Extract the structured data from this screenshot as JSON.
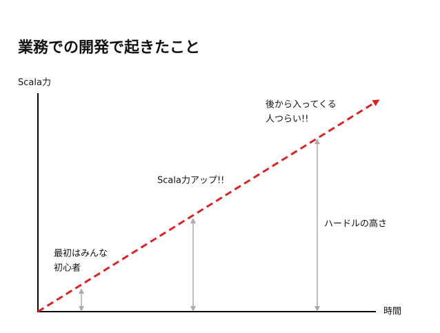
{
  "title": "業務での開発で起きたこと",
  "axes": {
    "y_label": "Scala力",
    "x_label": "時間"
  },
  "annotations": [
    {
      "lines": [
        "最初はみんな",
        "初心者"
      ]
    },
    {
      "lines": [
        "Scala力アップ!!"
      ]
    },
    {
      "lines": [
        "ハードルの高さ"
      ]
    },
    {
      "lines": [
        "後から入ってくる",
        "人つらい!!"
      ]
    }
  ]
}
